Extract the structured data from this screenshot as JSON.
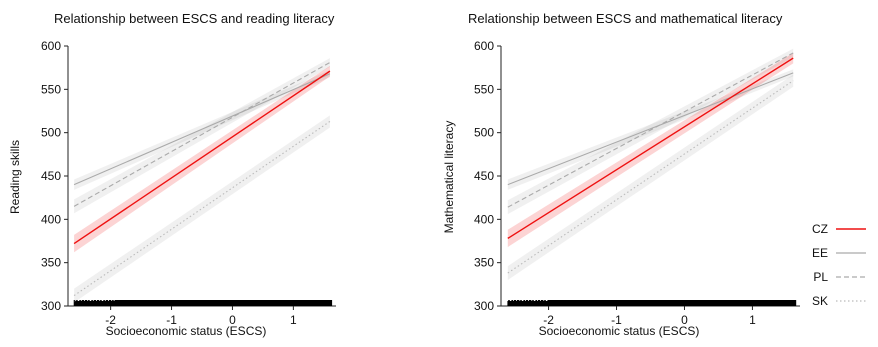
{
  "chart_data": [
    {
      "type": "line",
      "title": "Relationship between ESCS and reading literacy",
      "xlabel": "Socioeconomic status (ESCS)",
      "ylabel": "Reading skills",
      "xlim": [
        -2.7,
        1.7
      ],
      "ylim": [
        300,
        600
      ],
      "x_ticks": [
        "-2",
        "-1",
        "0",
        "1"
      ],
      "y_ticks": [
        "300",
        "350",
        "400",
        "450",
        "500",
        "550",
        "600"
      ],
      "rug": true,
      "series": [
        {
          "name": "CZ",
          "x": [
            -2.6,
            1.6
          ],
          "y": [
            372,
            571
          ],
          "ci": [
            10,
            6
          ]
        },
        {
          "name": "EE",
          "x": [
            -2.6,
            1.6
          ],
          "y": [
            440,
            568
          ],
          "ci": [
            6,
            4
          ]
        },
        {
          "name": "PL",
          "x": [
            -2.6,
            1.6
          ],
          "y": [
            415,
            581
          ],
          "ci": [
            8,
            5
          ]
        },
        {
          "name": "SK",
          "x": [
            -2.6,
            1.6
          ],
          "y": [
            312,
            513
          ],
          "ci": [
            8,
            7
          ]
        }
      ]
    },
    {
      "type": "line",
      "title": "Relationship between ESCS and mathematical literacy",
      "xlabel": "Socioeconomic status (ESCS)",
      "ylabel": "Mathematical literacy",
      "xlim": [
        -2.7,
        1.7
      ],
      "ylim": [
        300,
        600
      ],
      "x_ticks": [
        "-2",
        "-1",
        "0",
        "1"
      ],
      "y_ticks": [
        "300",
        "350",
        "400",
        "450",
        "500",
        "550",
        "600"
      ],
      "rug": true,
      "series": [
        {
          "name": "CZ",
          "x": [
            -2.6,
            1.6
          ],
          "y": [
            378,
            586
          ],
          "ci": [
            10,
            6
          ]
        },
        {
          "name": "EE",
          "x": [
            -2.6,
            1.6
          ],
          "y": [
            440,
            569
          ],
          "ci": [
            6,
            4
          ]
        },
        {
          "name": "PL",
          "x": [
            -2.6,
            1.6
          ],
          "y": [
            414,
            592
          ],
          "ci": [
            8,
            5
          ]
        },
        {
          "name": "SK",
          "x": [
            -2.6,
            1.6
          ],
          "y": [
            338,
            560
          ],
          "ci": [
            8,
            7
          ]
        }
      ]
    }
  ],
  "legend": [
    {
      "name": "CZ",
      "color": "#ee1111",
      "style": "solid"
    },
    {
      "name": "EE",
      "color": "#aaaaaa",
      "style": "solid"
    },
    {
      "name": "PL",
      "color": "#aaaaaa",
      "style": "dashed"
    },
    {
      "name": "SK",
      "color": "#bbbbbb",
      "style": "dotted"
    }
  ]
}
